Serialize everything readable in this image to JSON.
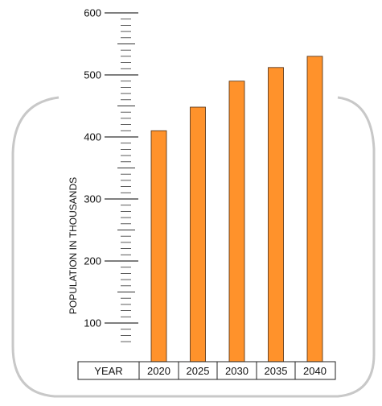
{
  "chart_data": {
    "type": "bar",
    "categories": [
      "2020",
      "2025",
      "2030",
      "2035",
      "2040"
    ],
    "values": [
      410,
      448,
      490,
      512,
      530
    ],
    "title": "",
    "xlabel": "YEAR",
    "ylabel": "POPULATION IN THOUSANDS",
    "ylim": [
      60,
      600
    ],
    "y_ticks": [
      "100",
      "200",
      "300",
      "400",
      "500",
      "600"
    ],
    "grid": false,
    "legend": "none",
    "colors": {
      "bar_fill": "#ff922b",
      "bar_stroke": "#4a2a10",
      "axis": "#222222",
      "frame": "#c8c8c8"
    }
  }
}
